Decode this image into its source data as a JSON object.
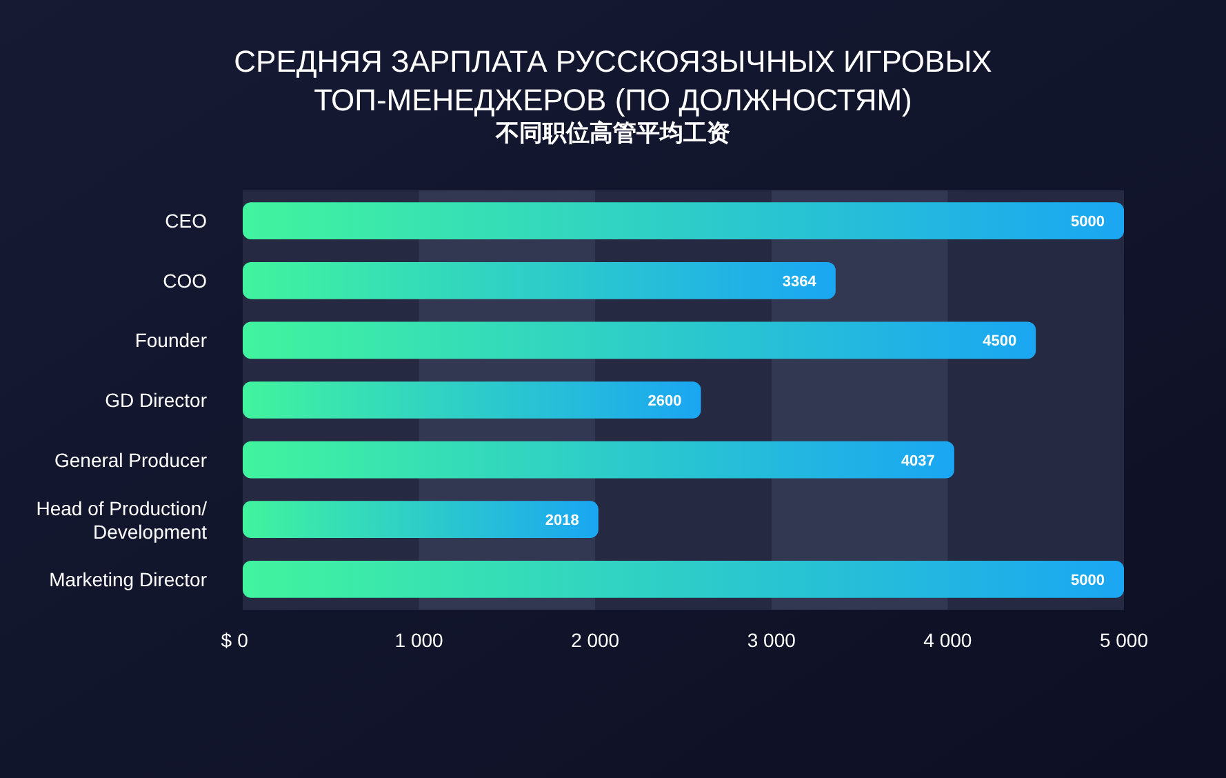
{
  "chart_data": {
    "type": "bar",
    "orientation": "horizontal",
    "title": "СРЕДНЯЯ ЗАРПЛАТА РУССКОЯЗЫЧНЫХ ИГРОВЫХ ТОП-МЕНЕДЖЕРОВ (ПО ДОЛЖНОСТЯМ)",
    "subtitle": "不同职位高管平均工资",
    "xlabel": "$",
    "categories": [
      "CEO",
      "COO",
      "Founder",
      "GD Director",
      "General Producer",
      "Head of Production/ Development",
      "Marketing Director"
    ],
    "values": [
      5000,
      3364,
      4500,
      2600,
      4037,
      2018,
      5000
    ],
    "color": "#1aa6f2",
    "data_labels": true,
    "xlim": [
      0,
      5000
    ],
    "xticks": [
      0,
      {
        "value": 1000,
        "label": "1 000"
      },
      {
        "value": 2000,
        "label": "2 000"
      },
      {
        "value": 3000,
        "label": "3 000"
      },
      {
        "value": 4000,
        "label": "4 000"
      },
      {
        "value": 5000,
        "label": "5 000"
      }
    ]
  }
}
